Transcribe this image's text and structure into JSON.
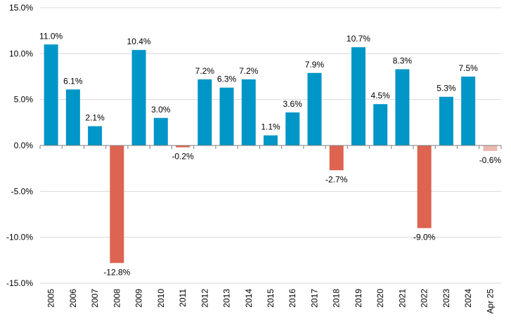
{
  "chart_data": {
    "type": "bar",
    "categories": [
      "2005",
      "2006",
      "2007",
      "2008",
      "2009",
      "2010",
      "2011",
      "2012",
      "2013",
      "2014",
      "2015",
      "2016",
      "2017",
      "2018",
      "2019",
      "2020",
      "2021",
      "2022",
      "2023",
      "2024",
      "Apr 25"
    ],
    "values": [
      11.0,
      6.1,
      2.1,
      -12.8,
      10.4,
      3.0,
      -0.2,
      7.2,
      6.3,
      7.2,
      1.1,
      3.6,
      7.9,
      -2.7,
      10.7,
      4.5,
      8.3,
      -9.0,
      5.3,
      7.5,
      -0.6
    ],
    "data_labels": [
      "11.0%",
      "6.1%",
      "2.1%",
      "-12.8%",
      "10.4%",
      "3.0%",
      "-0.2%",
      "7.2%",
      "6.3%",
      "7.2%",
      "1.1%",
      "3.6%",
      "7.9%",
      "-2.7%",
      "10.7%",
      "4.5%",
      "8.3%",
      "-9.0%",
      "5.3%",
      "7.5%",
      "-0.6%"
    ],
    "ylim": [
      -15,
      15
    ],
    "yticks": [
      15,
      10,
      5,
      0,
      -5,
      -10,
      -15
    ],
    "ytick_labels": [
      "15.0%",
      "10.0%",
      "5.0%",
      "0.0%",
      "-5.0%",
      "-10.0%",
      "-15.0%"
    ],
    "title": "",
    "xlabel": "",
    "ylabel": "",
    "grid": "horizontal",
    "legend": "none",
    "colors": {
      "positive": "#0096c8",
      "negative": "#dc6450",
      "partial_negative": "#ecb8ad"
    }
  }
}
